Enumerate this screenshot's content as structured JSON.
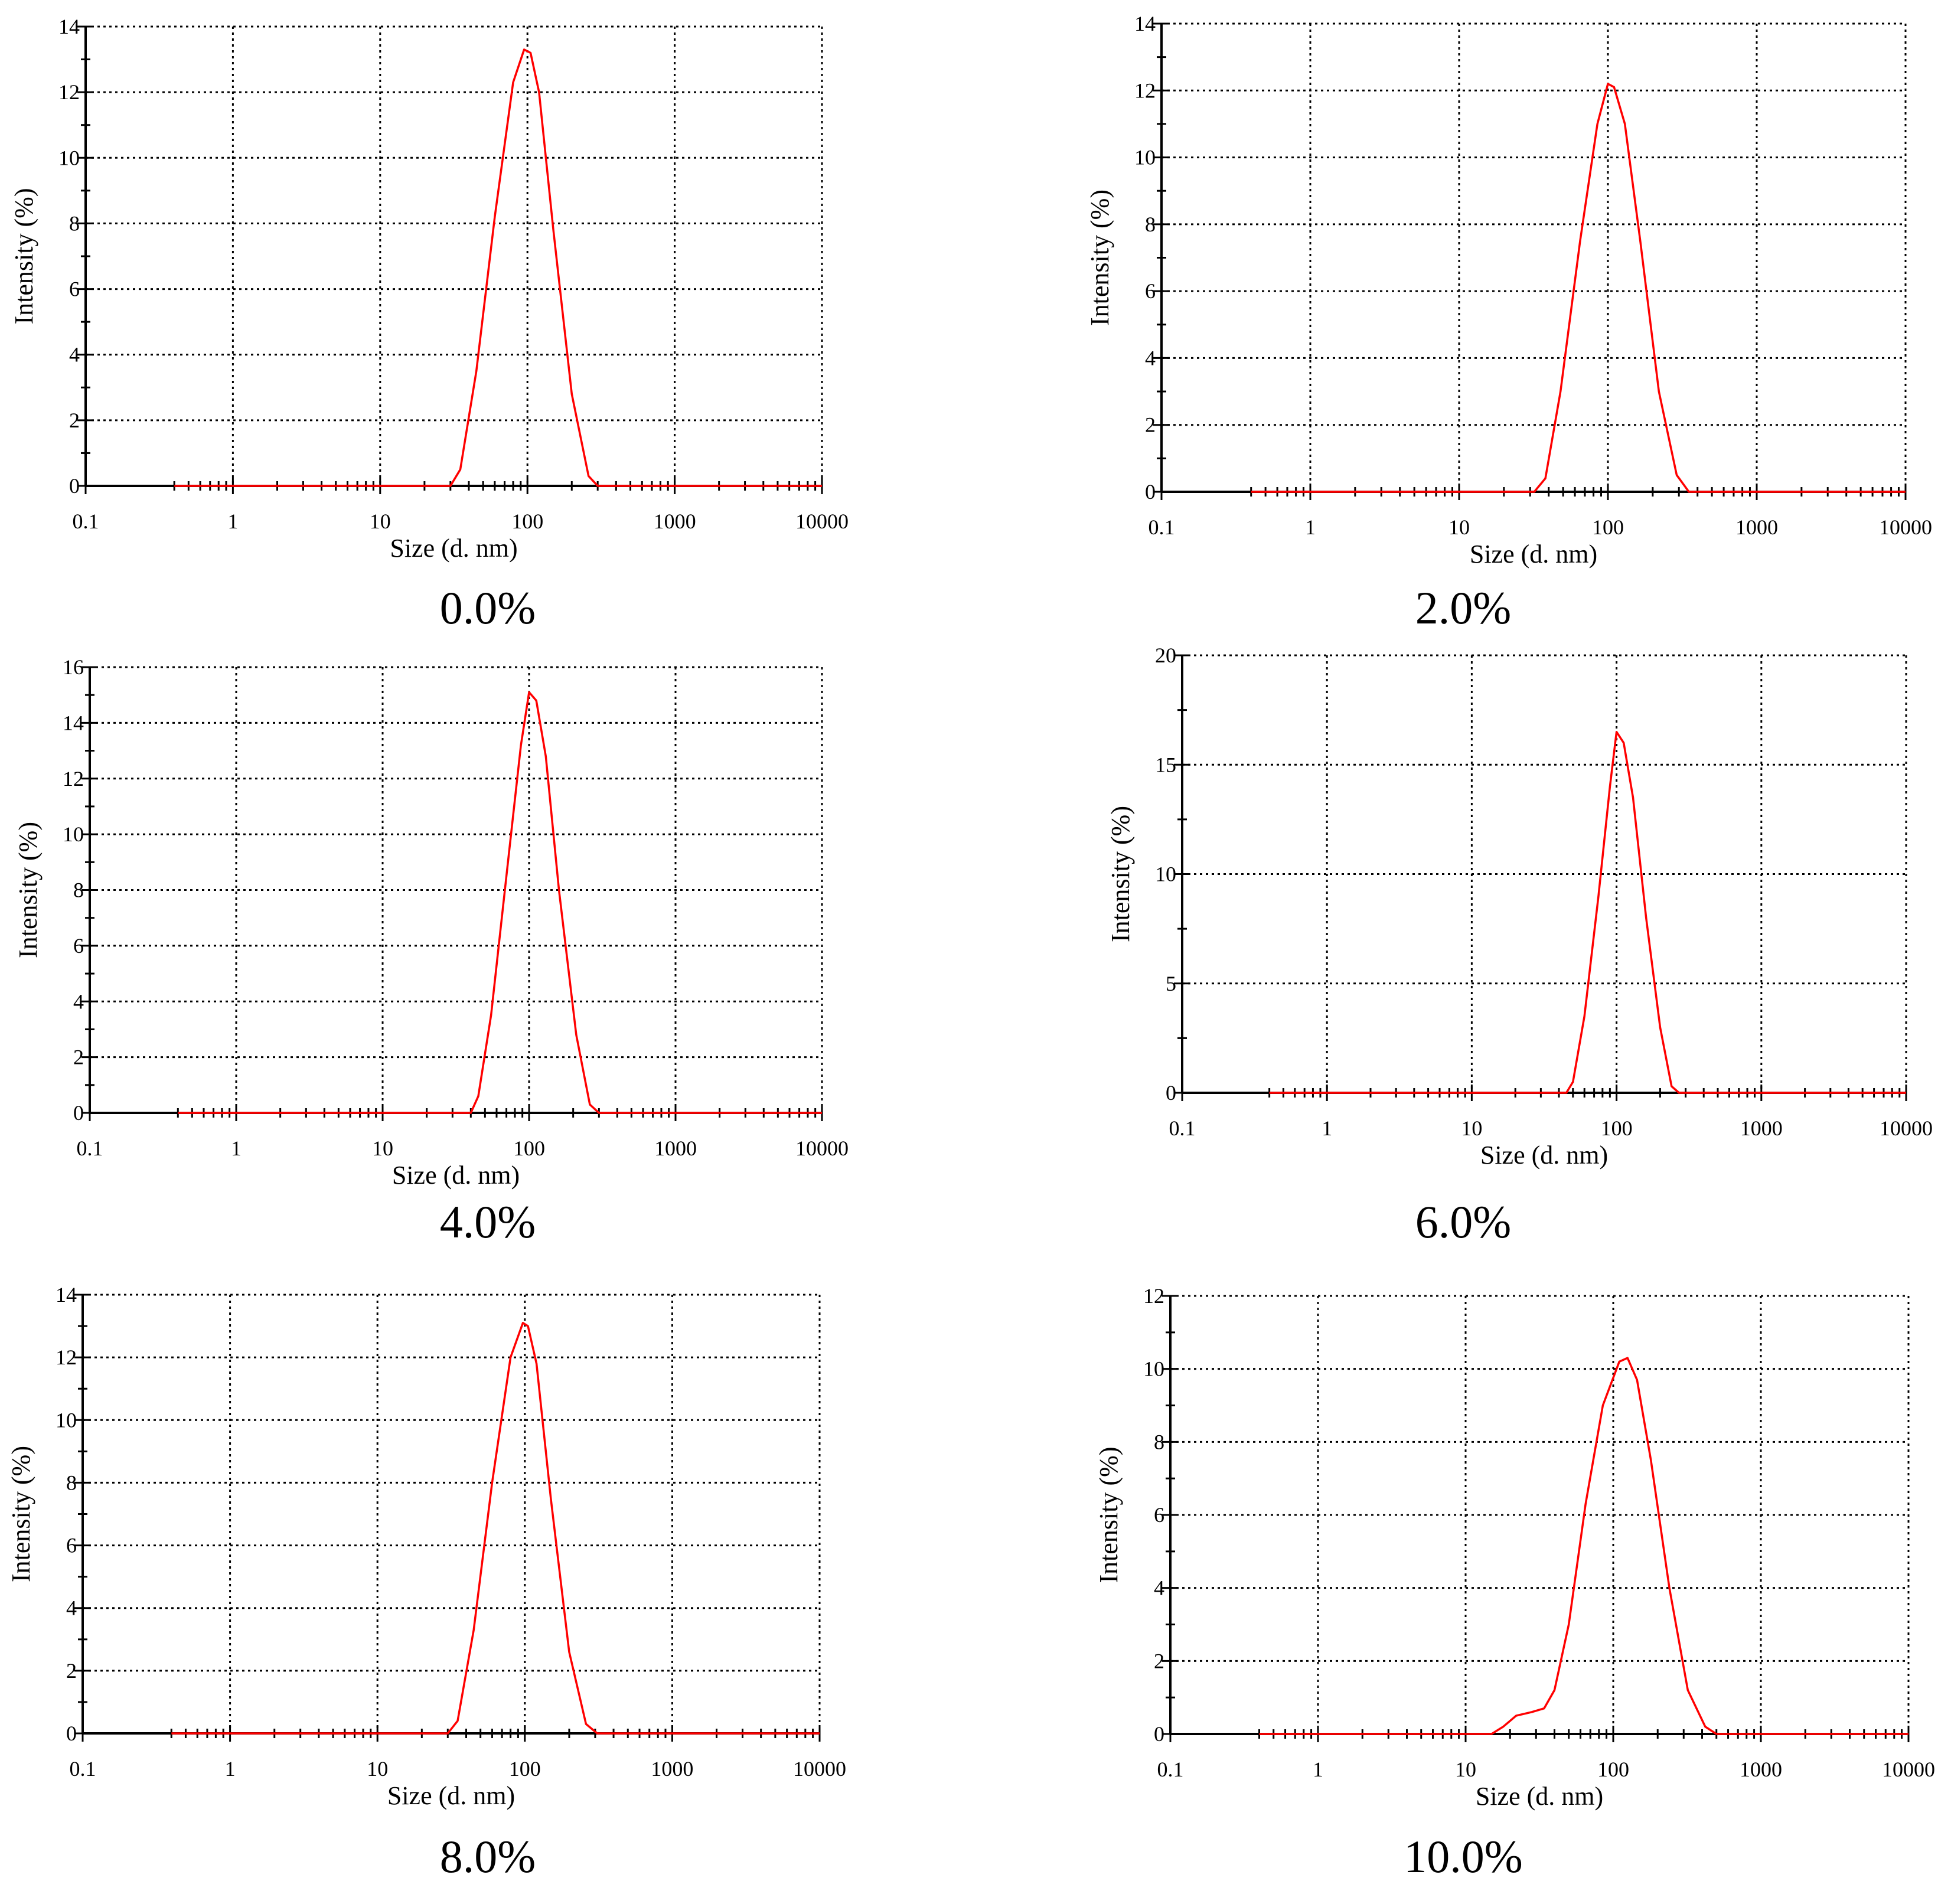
{
  "chart_data": [
    {
      "type": "line",
      "caption": "0.0%",
      "xlabel": "Size (d. nm)",
      "ylabel": "Intensity (%)",
      "xscale": "log",
      "xlim": [
        0.1,
        10000
      ],
      "ylim": [
        0,
        14
      ],
      "xticks": [
        "0.1",
        "1",
        "10",
        "100",
        "1000",
        "10000"
      ],
      "yticks": [
        "0",
        "2",
        "4",
        "6",
        "8",
        "10",
        "12",
        "14"
      ],
      "grid": true,
      "series": [
        {
          "color": "#ff0000",
          "x": [
            0.4,
            30,
            35,
            45,
            60,
            80,
            95,
            105,
            120,
            150,
            200,
            260,
            300,
            10000
          ],
          "y": [
            0,
            0,
            0.5,
            3.5,
            8.2,
            12.3,
            13.3,
            13.2,
            12.0,
            7.8,
            2.8,
            0.3,
            0,
            0
          ]
        }
      ]
    },
    {
      "type": "line",
      "caption": "2.0%",
      "xlabel": "Size (d. nm)",
      "ylabel": "Intensity (%)",
      "xscale": "log",
      "xlim": [
        0.1,
        10000
      ],
      "ylim": [
        0,
        14
      ],
      "xticks": [
        "0.1",
        "1",
        "10",
        "100",
        "1000",
        "10000"
      ],
      "yticks": [
        "0",
        "2",
        "4",
        "6",
        "8",
        "10",
        "12",
        "14"
      ],
      "grid": true,
      "series": [
        {
          "color": "#ff0000",
          "x": [
            0.4,
            32,
            38,
            48,
            65,
            85,
            100,
            110,
            130,
            165,
            220,
            290,
            350,
            10000
          ],
          "y": [
            0,
            0,
            0.4,
            3.0,
            7.5,
            11.0,
            12.2,
            12.1,
            11.0,
            7.5,
            3.0,
            0.5,
            0,
            0
          ]
        }
      ]
    },
    {
      "type": "line",
      "caption": "4.0%",
      "xlabel": "Size (d. nm)",
      "ylabel": "Intensity (%)",
      "xscale": "log",
      "xlim": [
        0.1,
        10000
      ],
      "ylim": [
        0,
        16
      ],
      "xticks": [
        "0.1",
        "1",
        "10",
        "100",
        "1000",
        "10000"
      ],
      "yticks": [
        "0",
        "2",
        "4",
        "6",
        "8",
        "10",
        "12",
        "14",
        "16"
      ],
      "grid": true,
      "series": [
        {
          "color": "#ff0000",
          "x": [
            0.4,
            40,
            45,
            55,
            70,
            88,
            100,
            112,
            130,
            160,
            210,
            260,
            300,
            10000
          ],
          "y": [
            0,
            0,
            0.6,
            3.5,
            8.5,
            13.2,
            15.1,
            14.8,
            12.8,
            8.0,
            2.8,
            0.3,
            0,
            0
          ]
        }
      ]
    },
    {
      "type": "line",
      "caption": "6.0%",
      "xlabel": "Size (d. nm)",
      "ylabel": "Intensity (%)",
      "xscale": "log",
      "xlim": [
        0.1,
        10000
      ],
      "ylim": [
        0,
        20
      ],
      "xticks": [
        "0.1",
        "1",
        "10",
        "100",
        "1000",
        "10000"
      ],
      "yticks": [
        "0",
        "5",
        "10",
        "15",
        "20"
      ],
      "grid": true,
      "series": [
        {
          "color": "#ff0000",
          "x": [
            0.4,
            45,
            50,
            60,
            75,
            90,
            100,
            112,
            130,
            160,
            200,
            240,
            270,
            10000
          ],
          "y": [
            0,
            0,
            0.5,
            3.5,
            9.0,
            14.0,
            16.5,
            16.0,
            13.5,
            8.0,
            3.0,
            0.3,
            0,
            0
          ]
        }
      ]
    },
    {
      "type": "line",
      "caption": "8.0%",
      "xlabel": "Size (d. nm)",
      "ylabel": "Intensity (%)",
      "xscale": "log",
      "xlim": [
        0.1,
        10000
      ],
      "ylim": [
        0,
        14
      ],
      "xticks": [
        "0.1",
        "1",
        "10",
        "100",
        "1000",
        "10000"
      ],
      "yticks": [
        "0",
        "2",
        "4",
        "6",
        "8",
        "10",
        "12",
        "14"
      ],
      "grid": true,
      "series": [
        {
          "color": "#ff0000",
          "x": [
            0.4,
            30,
            35,
            45,
            60,
            80,
            97,
            105,
            120,
            150,
            200,
            260,
            310,
            10000
          ],
          "y": [
            0,
            0,
            0.4,
            3.3,
            8.0,
            12.0,
            13.1,
            13.0,
            11.8,
            7.5,
            2.6,
            0.3,
            0,
            0
          ]
        }
      ]
    },
    {
      "type": "line",
      "caption": "10.0%",
      "xlabel": "Size (d. nm)",
      "ylabel": "Intensity (%)",
      "xscale": "log",
      "xlim": [
        0.1,
        10000
      ],
      "ylim": [
        0,
        12
      ],
      "xticks": [
        "0.1",
        "1",
        "10",
        "100",
        "1000",
        "10000"
      ],
      "yticks": [
        "0",
        "2",
        "4",
        "6",
        "8",
        "10",
        "12"
      ],
      "grid": true,
      "series": [
        {
          "color": "#ff0000",
          "x": [
            0.4,
            15,
            18,
            22,
            28,
            34,
            40,
            50,
            65,
            85,
            110,
            125,
            145,
            180,
            240,
            320,
            420,
            500,
            10000
          ],
          "y": [
            0,
            0,
            0.2,
            0.5,
            0.6,
            0.7,
            1.2,
            3.0,
            6.3,
            9.0,
            10.2,
            10.3,
            9.7,
            7.5,
            4.0,
            1.2,
            0.2,
            0,
            0
          ]
        }
      ]
    }
  ]
}
